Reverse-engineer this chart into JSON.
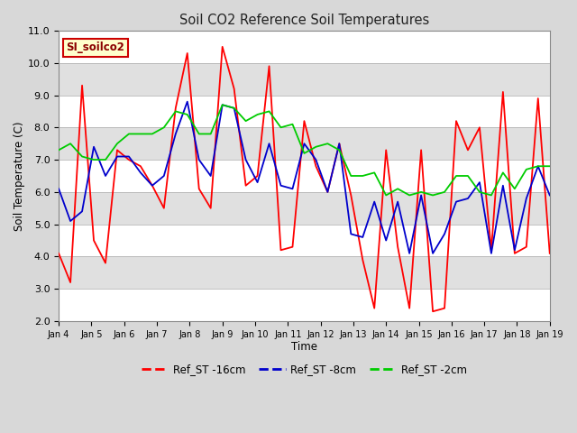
{
  "title": "Soil CO2 Reference Soil Temperatures",
  "xlabel": "Time",
  "ylabel": "Soil Temperature (C)",
  "ylim": [
    2.0,
    11.0
  ],
  "yticks": [
    2.0,
    3.0,
    4.0,
    5.0,
    6.0,
    7.0,
    8.0,
    9.0,
    10.0,
    11.0
  ],
  "x_labels": [
    "Jan 4",
    "Jan 5",
    "Jan 6",
    "Jan 7",
    "Jan 8",
    "Jan 9",
    "Jan 10",
    "Jan 11",
    "Jan 12",
    "Jan 13",
    "Jan 14",
    "Jan 15",
    "Jan 16",
    "Jan 17",
    "Jan 18",
    "Jan 19"
  ],
  "annotation_text": "SI_soilco2",
  "annotation_bg": "#ffffcc",
  "annotation_border": "#cc0000",
  "line_colors": {
    "red": "#ff0000",
    "blue": "#0000cc",
    "green": "#00cc00"
  },
  "legend_labels": [
    "Ref_ST -16cm",
    "Ref_ST -8cm",
    "Ref_ST -2cm"
  ],
  "background_color": "#d8d8d8",
  "plot_bg": "#d8d8d8",
  "grid_color": "#ffffff",
  "title_color": "#222222",
  "red_data": [
    4.1,
    3.2,
    9.3,
    4.5,
    3.8,
    7.3,
    7.0,
    6.8,
    6.2,
    5.5,
    8.6,
    10.3,
    6.1,
    5.5,
    10.5,
    9.2,
    6.2,
    6.5,
    9.9,
    4.2,
    4.3,
    8.2,
    6.8,
    6.0,
    7.5,
    5.9,
    3.9,
    2.4,
    7.3,
    4.3,
    2.4,
    7.3,
    2.3,
    2.4,
    8.2,
    7.3,
    8.0,
    4.2,
    9.1,
    4.1,
    4.3,
    8.9,
    4.1
  ],
  "blue_data": [
    6.1,
    5.1,
    5.4,
    7.4,
    6.5,
    7.1,
    7.1,
    6.6,
    6.2,
    6.5,
    7.8,
    8.8,
    7.0,
    6.5,
    8.7,
    8.6,
    7.0,
    6.3,
    7.5,
    6.2,
    6.1,
    7.5,
    7.0,
    6.0,
    7.5,
    4.7,
    4.6,
    5.7,
    4.5,
    5.7,
    4.1,
    5.9,
    4.1,
    4.7,
    5.7,
    5.8,
    6.3,
    4.1,
    6.2,
    4.2,
    5.8,
    6.8,
    5.9
  ],
  "green_data": [
    7.3,
    7.5,
    7.1,
    7.0,
    7.0,
    7.5,
    7.8,
    7.8,
    7.8,
    8.0,
    8.5,
    8.4,
    7.8,
    7.8,
    8.7,
    8.6,
    8.2,
    8.4,
    8.5,
    8.0,
    8.1,
    7.2,
    7.4,
    7.5,
    7.3,
    6.5,
    6.5,
    6.6,
    5.9,
    6.1,
    5.9,
    6.0,
    5.9,
    6.0,
    6.5,
    6.5,
    6.0,
    5.9,
    6.6,
    6.1,
    6.7,
    6.8,
    6.8
  ]
}
